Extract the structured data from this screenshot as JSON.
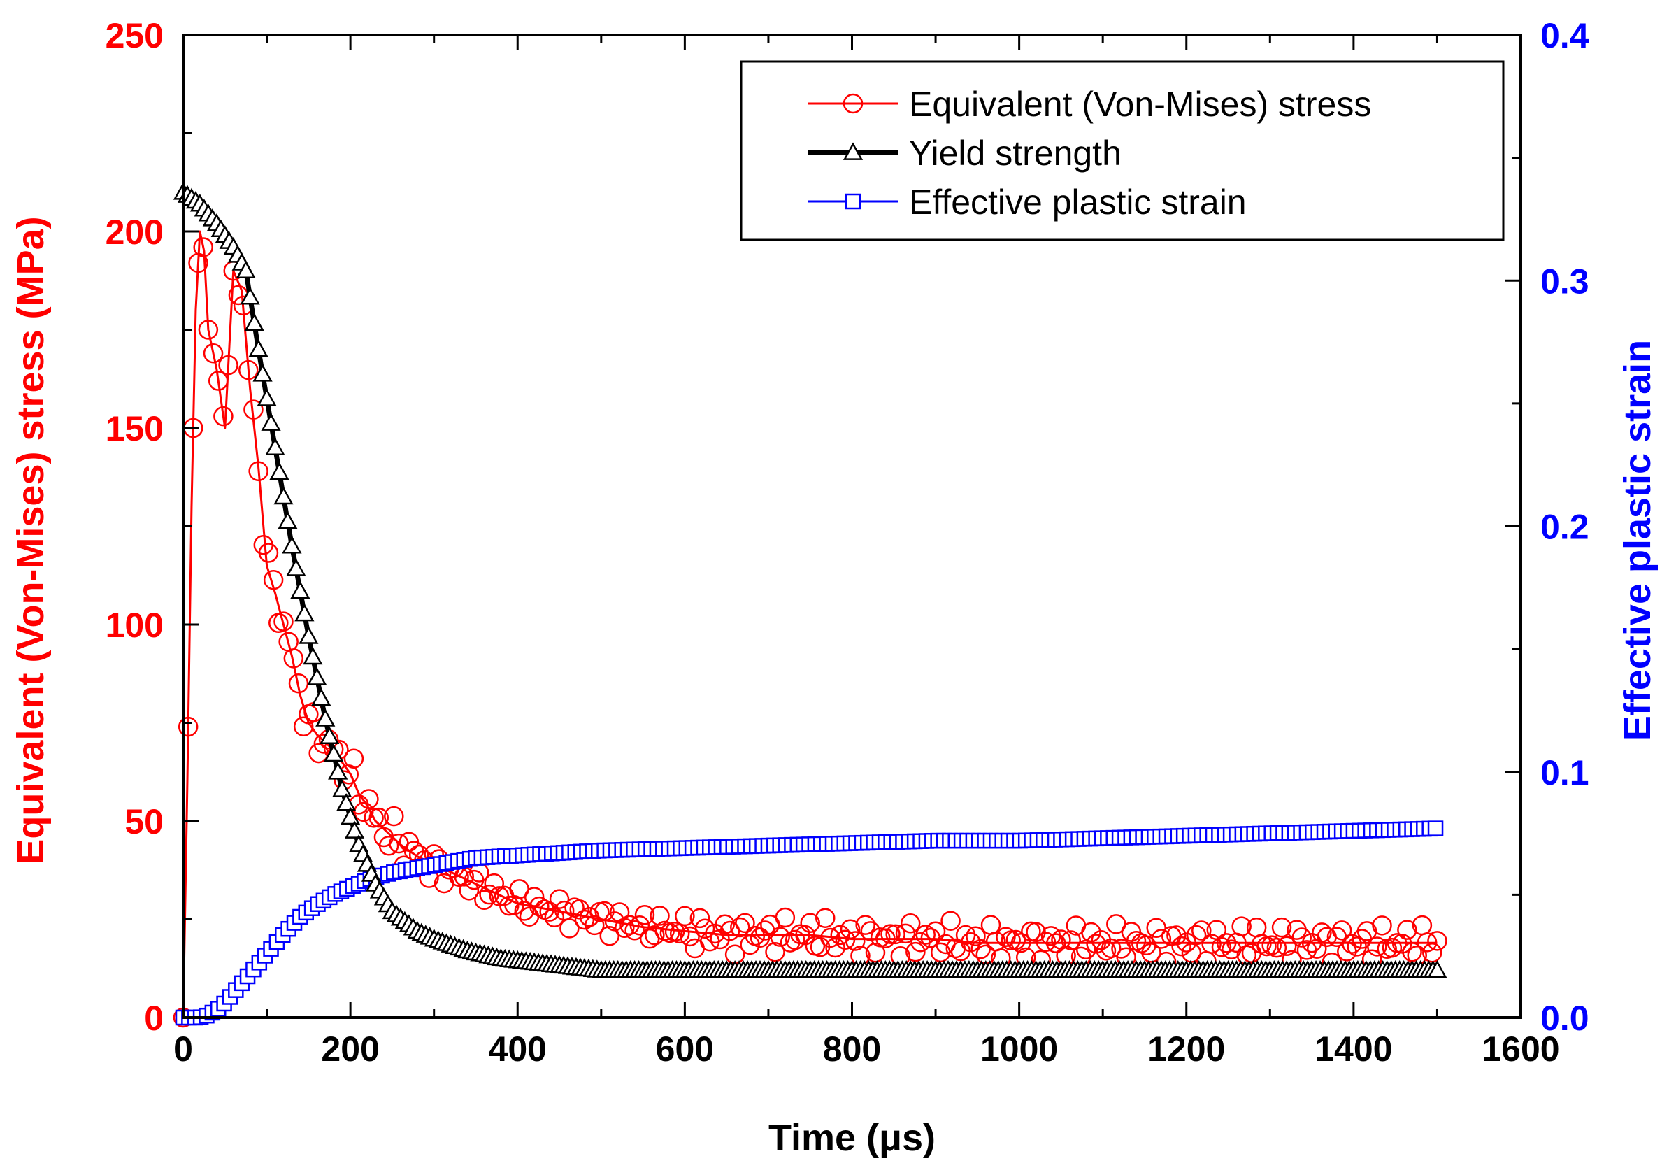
{
  "colors": {
    "stress": "#ff0000",
    "yield": "#000000",
    "strain": "#0000ff",
    "axis": "#000000",
    "background": "#ffffff"
  },
  "chart_data": {
    "type": "line",
    "title": "",
    "xlabel": "Time (μs)",
    "ylabel_left": "Equivalent (Von-Mises) stress (MPa)",
    "ylabel_right": "Effective plastic strain",
    "xlim": [
      0,
      1600
    ],
    "ylim_left": [
      0,
      250
    ],
    "ylim_right": [
      0,
      0.4
    ],
    "xticks": [
      "0",
      "200",
      "400",
      "600",
      "800",
      "1000",
      "1200",
      "1400",
      "1600"
    ],
    "yticks_left": [
      "0",
      "50",
      "100",
      "150",
      "200",
      "250"
    ],
    "yticks_right": [
      "0.0",
      "0.1",
      "0.2",
      "0.3",
      "0.4"
    ],
    "grid": false,
    "legend_position": "top-right",
    "series": [
      {
        "name": "Equivalent (Von-Mises) stress",
        "axis": "left",
        "marker": "open-circle",
        "x": [
          0,
          5,
          10,
          15,
          20,
          25,
          30,
          40,
          50,
          60,
          70,
          80,
          90,
          100,
          110,
          120,
          130,
          140,
          150,
          160,
          170,
          180,
          190,
          200,
          210,
          220,
          230,
          240,
          250,
          260,
          280,
          300,
          320,
          340,
          360,
          380,
          400,
          450,
          500,
          550,
          600,
          650,
          700,
          750,
          800,
          850,
          900,
          950,
          1000,
          1050,
          1100,
          1150,
          1200,
          1250,
          1300,
          1350,
          1400,
          1450,
          1500
        ],
        "y": [
          0,
          60,
          130,
          180,
          200,
          195,
          175,
          165,
          150,
          190,
          185,
          160,
          140,
          115,
          108,
          100,
          92,
          82,
          75,
          72,
          70,
          68,
          65,
          62,
          57,
          54,
          50,
          48,
          46,
          44,
          41,
          39,
          37,
          35,
          33,
          31,
          29,
          27,
          25,
          23,
          22,
          21,
          21,
          21,
          20,
          20,
          20,
          19,
          19,
          19,
          19,
          19,
          19,
          19,
          19,
          19,
          19,
          19,
          19
        ]
      },
      {
        "name": "Yield strength",
        "axis": "left",
        "marker": "open-triangle",
        "x": [
          0,
          20,
          40,
          60,
          75,
          90,
          110,
          130,
          150,
          170,
          190,
          210,
          230,
          250,
          280,
          300,
          340,
          380,
          420,
          460,
          500,
          600,
          800,
          1000,
          1200,
          1400,
          1500
        ],
        "y": [
          210,
          207,
          202,
          196,
          190,
          170,
          145,
          120,
          97,
          76,
          58,
          44,
          34,
          27,
          22,
          20,
          17,
          15,
          14,
          13,
          12,
          12,
          12,
          12,
          12,
          12,
          12
        ]
      },
      {
        "name": "Effective plastic strain",
        "axis": "right",
        "marker": "open-square",
        "x": [
          0,
          20,
          30,
          40,
          50,
          60,
          70,
          80,
          90,
          100,
          120,
          140,
          160,
          180,
          200,
          220,
          250,
          300,
          350,
          400,
          450,
          500,
          600,
          700,
          800,
          900,
          1000,
          1100,
          1200,
          1300,
          1400,
          1500
        ],
        "y": [
          0.0,
          0.0,
          0.001,
          0.003,
          0.006,
          0.01,
          0.014,
          0.018,
          0.022,
          0.026,
          0.034,
          0.041,
          0.046,
          0.05,
          0.053,
          0.056,
          0.059,
          0.062,
          0.065,
          0.066,
          0.067,
          0.068,
          0.069,
          0.07,
          0.071,
          0.072,
          0.072,
          0.073,
          0.074,
          0.075,
          0.076,
          0.077
        ]
      }
    ]
  }
}
